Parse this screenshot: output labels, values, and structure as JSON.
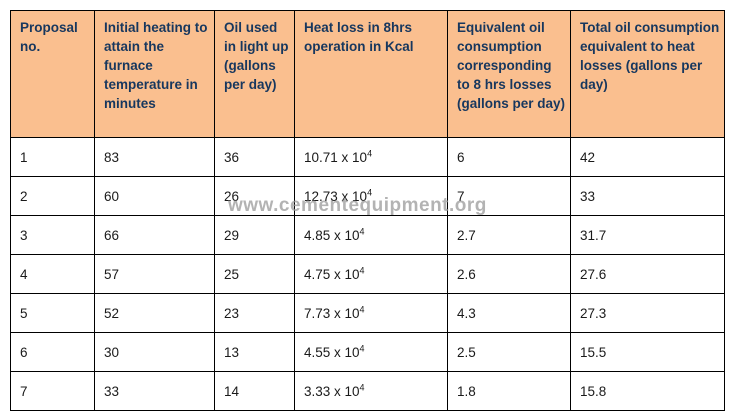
{
  "watermark": "www.cementequipment.org",
  "colors": {
    "header_bg": "#FABF8F",
    "header_text": "#17375E",
    "body_text": "#1A1A1A",
    "border": "#000000",
    "watermark_gray": "#9A9A9A"
  },
  "table": {
    "columns": [
      "Proposal no.",
      "Initial heating to attain the furnace temperature in minutes",
      "Oil used in light up (gallons per day)",
      "Heat loss in 8hrs operation in Kcal",
      "Equivalent oil consumption corresponding to 8 hrs losses (gallons per day)",
      "Total oil consumption equivalent to heat losses (gallons per day)"
    ],
    "rows": [
      {
        "no": "1",
        "heating": "83",
        "oil": "36",
        "heat_mant": "10.71 x 10",
        "heat_exp": "4",
        "equiv": "6",
        "total": "42"
      },
      {
        "no": "2",
        "heating": "60",
        "oil": "26",
        "heat_mant": "12.73 x 10",
        "heat_exp": "4",
        "equiv": "7",
        "total": "33"
      },
      {
        "no": "3",
        "heating": "66",
        "oil": "29",
        "heat_mant": "4.85 x 10",
        "heat_exp": "4",
        "equiv": "2.7",
        "total": "31.7"
      },
      {
        "no": "4",
        "heating": "57",
        "oil": "25",
        "heat_mant": "4.75 x 10",
        "heat_exp": "4",
        "equiv": "2.6",
        "total": "27.6"
      },
      {
        "no": "5",
        "heating": "52",
        "oil": "23",
        "heat_mant": "7.73 x 10",
        "heat_exp": "4",
        "equiv": "4.3",
        "total": "27.3"
      },
      {
        "no": "6",
        "heating": "30",
        "oil": "13",
        "heat_mant": "4.55 x 10",
        "heat_exp": "4",
        "equiv": "2.5",
        "total": "15.5"
      },
      {
        "no": "7",
        "heating": "33",
        "oil": "14",
        "heat_mant": "3.33 x 10",
        "heat_exp": "4",
        "equiv": "1.8",
        "total": "15.8"
      }
    ]
  }
}
